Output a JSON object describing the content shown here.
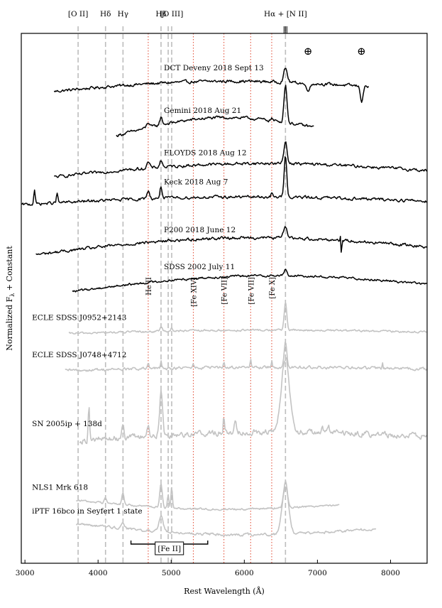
{
  "chart_data": {
    "type": "line",
    "xlabel": "Rest Wavelength (Å)",
    "ylabel_main": "Normalized F",
    "ylabel_sub": "λ",
    "ylabel_rest": " + Constant",
    "xlim": [
      2950,
      8500
    ],
    "ylim": [
      0,
      100
    ],
    "x_ticks": [
      3000,
      4000,
      5000,
      6000,
      7000,
      8000
    ],
    "y_ticks": [],
    "grid": false,
    "legend": "none",
    "colors": {
      "spectrum": "#000000",
      "comparison": "#c3c3c3",
      "gray_line": "#bdbdbd",
      "red_line": "#e3543e"
    },
    "gray_lines": [
      {
        "x": 3727,
        "label": "[O II]"
      },
      {
        "x": 4102,
        "label": "Hδ"
      },
      {
        "x": 4341,
        "label": "Hγ"
      },
      {
        "x": 4861,
        "label": "Hβ"
      },
      {
        "x": 4959,
        "label": ""
      },
      {
        "x": 5007,
        "label": "[O III]"
      },
      {
        "x": 6563,
        "label": "Hα + [N II]"
      }
    ],
    "red_lines": [
      {
        "x": 4686,
        "label": "He II"
      },
      {
        "x": 5303,
        "label": "[Fe XIV]"
      },
      {
        "x": 5721,
        "label": "[Fe VII]"
      },
      {
        "x": 6087,
        "label": "[Fe VII]"
      },
      {
        "x": 6375,
        "label": "[Fe X]"
      }
    ],
    "telluric": [
      {
        "x": 6870,
        "label": "⊕"
      },
      {
        "x": 7600,
        "label": "⊕"
      }
    ],
    "fe_ii_band": {
      "x_start": 4450,
      "x_end": 5500,
      "label": "[Fe II]"
    },
    "series": [
      {
        "name": "DCT Deveny 2018 Sept 13",
        "color": "black",
        "label_x": 4900,
        "xrange": [
          3400,
          7700
        ],
        "base": 89.5,
        "slope": 0.9,
        "noise": 0.45,
        "lines": [
          [
            6563,
            2.6,
            25
          ]
        ],
        "absorptions": [
          [
            6870,
            1.2,
            30
          ],
          [
            7605,
            2.8,
            18
          ]
        ],
        "extra": []
      },
      {
        "name": "Gemini 2018 Aug 21",
        "color": "black",
        "label_x": 4900,
        "xrange": [
          4250,
          6950
        ],
        "base": 81.5,
        "slope": 1.6,
        "noise": 0.45,
        "lines": [
          [
            6563,
            7.2,
            20
          ],
          [
            4861,
            1.4,
            18
          ],
          [
            4686,
            1.0,
            20
          ],
          [
            6375,
            0.5,
            12
          ]
        ],
        "absorptions": [],
        "extra": []
      },
      {
        "name": "FLOYDS 2018 Aug 12",
        "color": "black",
        "label_x": 4900,
        "xrange": [
          3400,
          8500
        ],
        "base": 73.5,
        "slope": 1.2,
        "noise": 0.45,
        "lines": [
          [
            6563,
            4.2,
            22
          ],
          [
            4861,
            1.3,
            18
          ],
          [
            4686,
            1.1,
            20
          ]
        ],
        "absorptions": [],
        "extra": []
      },
      {
        "name": "Keck 2018 Aug 7",
        "color": "black",
        "label_x": 4900,
        "xrange": [
          2950,
          8500
        ],
        "base": 68.0,
        "slope": 0.7,
        "noise": 0.45,
        "lines": [
          [
            6563,
            7.8,
            18
          ],
          [
            4861,
            2.2,
            15
          ],
          [
            4686,
            1.5,
            18
          ],
          [
            3130,
            2.8,
            10
          ],
          [
            3440,
            1.8,
            10
          ],
          [
            6375,
            0.7,
            10
          ]
        ],
        "absorptions": [],
        "extra": []
      },
      {
        "name": "P200 2018 June 12",
        "color": "black",
        "label_x": 4900,
        "xrange": [
          3150,
          8500
        ],
        "base": 59.0,
        "slope": 1.5,
        "noise": 0.45,
        "lines": [
          [
            6563,
            2.2,
            25
          ]
        ],
        "absorptions": [],
        "extra": [
          [
            7325,
            2.0,
            8
          ]
        ]
      },
      {
        "name": "SDSS 2002 July 11",
        "color": "black",
        "label_x": 4900,
        "xrange": [
          3650,
          8500
        ],
        "base": 52.0,
        "slope": 1.4,
        "noise": 0.35,
        "lines": [
          [
            6563,
            1.1,
            20
          ]
        ],
        "absorptions": [],
        "extra": []
      },
      {
        "name": "ECLE SDSS J0952+2143",
        "color": "gray",
        "label_x": 3000,
        "xrange": [
          3600,
          8500
        ],
        "base": 43.5,
        "slope": 0.3,
        "noise": 0.3,
        "lines": [
          [
            6563,
            5.2,
            18
          ],
          [
            4861,
            1.0,
            15
          ],
          [
            5007,
            0.8,
            10
          ]
        ],
        "absorptions": [],
        "extra": []
      },
      {
        "name": "ECLE SDSS J0748+4712",
        "color": "gray",
        "label_x": 3000,
        "xrange": [
          3550,
          8500
        ],
        "base": 36.5,
        "slope": 0.3,
        "noise": 0.45,
        "lines": [
          [
            6563,
            5.0,
            18
          ],
          [
            6087,
            1.6,
            6
          ],
          [
            6375,
            1.6,
            6
          ],
          [
            5721,
            1.2,
            6
          ],
          [
            5303,
            1.0,
            6
          ],
          [
            4861,
            1.2,
            8
          ],
          [
            4686,
            0.9,
            8
          ],
          [
            7890,
            1.3,
            6
          ]
        ],
        "absorptions": [],
        "extra": []
      },
      {
        "name": "SN 2005ip + 138d",
        "color": "gray",
        "label_x": 3000,
        "xrange": [
          3750,
          8500
        ],
        "base": 23.5,
        "slope": 0.8,
        "noise": 0.9,
        "lines": [
          [
            6563,
            14.0,
            55
          ],
          [
            4861,
            8.0,
            20
          ],
          [
            3875,
            7.0,
            10
          ],
          [
            4340,
            3.0,
            15
          ],
          [
            5720,
            3.2,
            8
          ],
          [
            5876,
            2.2,
            15
          ],
          [
            4686,
            2.0,
            15
          ],
          [
            7065,
            1.6,
            8
          ],
          [
            7150,
            1.3,
            8
          ]
        ],
        "absorptions": [],
        "extra": []
      },
      {
        "name": "NLS1 Mrk 618",
        "color": "gray",
        "label_x": 3000,
        "xrange": [
          3700,
          7300
        ],
        "base": 11.5,
        "slope": -0.8,
        "noise": 0.3,
        "lines": [
          [
            6563,
            5.0,
            25
          ],
          [
            4861,
            4.5,
            18
          ],
          [
            4341,
            2.2,
            15
          ],
          [
            4102,
            1.2,
            15
          ],
          [
            5007,
            4.2,
            10
          ],
          [
            4959,
            2.6,
            10
          ]
        ],
        "absorptions": [],
        "extra": []
      },
      {
        "name": "iPTF 16bco in Seyfert 1 state",
        "color": "gray",
        "label_x": 3000,
        "xrange": [
          3700,
          7800
        ],
        "base": 7.0,
        "slope": -1.0,
        "noise": 0.4,
        "lines": [
          [
            6563,
            9.0,
            45
          ],
          [
            4861,
            3.0,
            30
          ],
          [
            4341,
            1.2,
            20
          ]
        ],
        "absorptions": [],
        "extra": []
      }
    ]
  }
}
